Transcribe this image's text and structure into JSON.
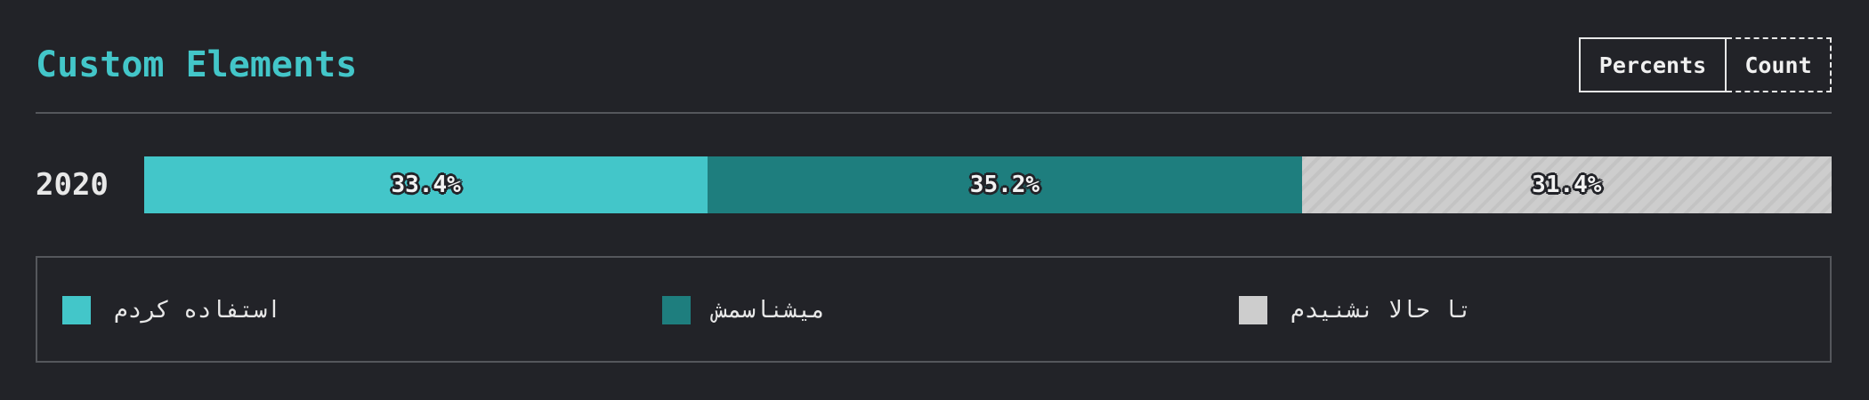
{
  "title": "Custom Elements",
  "toggle": {
    "percents_label": "Percents",
    "count_label": "Count"
  },
  "chart_data": {
    "type": "bar",
    "stacked": true,
    "orientation": "horizontal",
    "categories": [
      "2020"
    ],
    "series": [
      {
        "name": "استفاده کردم",
        "values": [
          33.4
        ],
        "label": "33.4%",
        "color": "#43c6c9"
      },
      {
        "name": "میشناسمش",
        "values": [
          35.2
        ],
        "label": "35.2%",
        "color": "#1e7e7e"
      },
      {
        "name": "تا حالا نشنیدم",
        "values": [
          31.4
        ],
        "label": "31.4%",
        "color": "#cdcdcd"
      }
    ],
    "xlim": [
      0,
      100
    ],
    "legend": "bottom"
  }
}
